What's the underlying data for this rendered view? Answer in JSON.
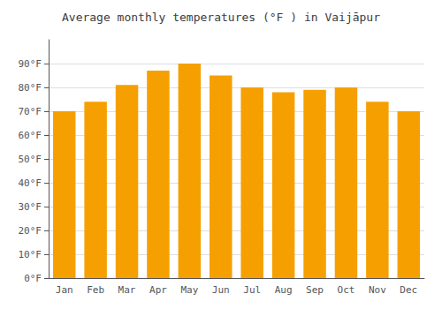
{
  "chart_data": {
    "type": "bar",
    "title": "Average monthly temperatures (°F ) in Vaijāpur",
    "categories": [
      "Jan",
      "Feb",
      "Mar",
      "Apr",
      "May",
      "Jun",
      "Jul",
      "Aug",
      "Sep",
      "Oct",
      "Nov",
      "Dec"
    ],
    "values": [
      70,
      74,
      81,
      87,
      90,
      85,
      80,
      78,
      79,
      80,
      74,
      70
    ],
    "color": "#F5A000",
    "ylim": [
      0,
      100
    ],
    "yticks": [
      {
        "value": 0,
        "label": "0°F"
      },
      {
        "value": 10,
        "label": "10°F"
      },
      {
        "value": 20,
        "label": "20°F"
      },
      {
        "value": 30,
        "label": "30°F"
      },
      {
        "value": 40,
        "label": "40°F"
      },
      {
        "value": 50,
        "label": "50°F"
      },
      {
        "value": 60,
        "label": "60°F"
      },
      {
        "value": 70,
        "label": "70°F"
      },
      {
        "value": 80,
        "label": "80°F"
      },
      {
        "value": 90,
        "label": "90°F"
      }
    ],
    "grid": true
  }
}
